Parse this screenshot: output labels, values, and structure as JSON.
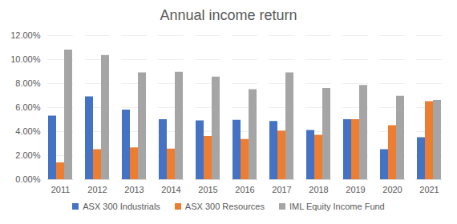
{
  "chart_data": {
    "type": "bar",
    "title": "Annual income return",
    "categories": [
      "2011",
      "2012",
      "2013",
      "2014",
      "2015",
      "2016",
      "2017",
      "2018",
      "2019",
      "2020",
      "2021"
    ],
    "series": [
      {
        "name": "ASX 300 Industrials",
        "color": "#4472c4",
        "values": [
          5.3,
          6.9,
          5.8,
          5.0,
          4.9,
          4.95,
          4.85,
          4.1,
          5.0,
          2.5,
          3.5
        ]
      },
      {
        "name": "ASX 300 Resources",
        "color": "#ed7d31",
        "values": [
          1.4,
          2.5,
          2.65,
          2.55,
          3.6,
          3.35,
          4.05,
          3.7,
          5.0,
          4.5,
          6.5
        ]
      },
      {
        "name": "IML Equity Income Fund",
        "color": "#a5a5a5",
        "values": [
          10.8,
          10.35,
          8.9,
          8.95,
          8.55,
          7.5,
          8.9,
          7.6,
          7.85,
          6.95,
          6.6
        ]
      }
    ],
    "ylim": [
      0,
      12
    ],
    "yticks": [
      {
        "value": 0,
        "label": "0.00%"
      },
      {
        "value": 2,
        "label": "2.00%"
      },
      {
        "value": 4,
        "label": "4.00%"
      },
      {
        "value": 6,
        "label": "6.00%"
      },
      {
        "value": 8,
        "label": "8.00%"
      },
      {
        "value": 10,
        "label": "10.00%"
      },
      {
        "value": 12,
        "label": "12.00%"
      }
    ],
    "grid": true,
    "legend": "bottom"
  }
}
